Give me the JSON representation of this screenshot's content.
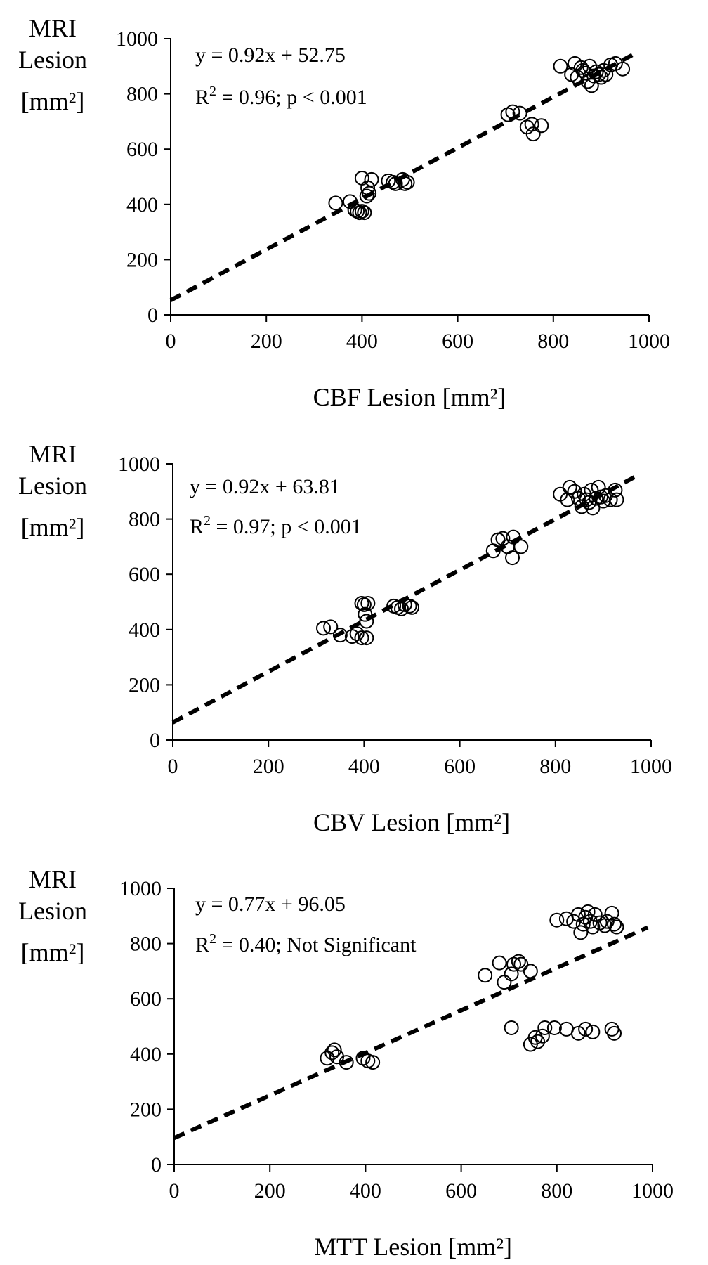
{
  "chart_data": [
    {
      "type": "scatter",
      "ylabel": [
        "MRI",
        "Lesion",
        "[mm²]"
      ],
      "xlabel": "CBF Lesion [mm²]",
      "equation": "y = 0.92x + 52.75",
      "r2_prefix": "R",
      "r2_sup": "2",
      "r2_rest": " = 0.96; p < 0.001",
      "xlim": [
        0,
        1000
      ],
      "ylim": [
        0,
        1000
      ],
      "xticks": [
        "0",
        "200",
        "400",
        "600",
        "800",
        "1000"
      ],
      "yticks": [
        "0",
        "200",
        "400",
        "600",
        "800",
        "1000"
      ],
      "fit": {
        "slope": 0.92,
        "intercept": 52.75,
        "x_range": [
          0,
          970
        ],
        "style": "dashed"
      },
      "points": [
        [
          345,
          405
        ],
        [
          375,
          410
        ],
        [
          385,
          380
        ],
        [
          390,
          375
        ],
        [
          395,
          370
        ],
        [
          400,
          375
        ],
        [
          405,
          370
        ],
        [
          400,
          495
        ],
        [
          410,
          430
        ],
        [
          412,
          460
        ],
        [
          415,
          440
        ],
        [
          420,
          490
        ],
        [
          455,
          485
        ],
        [
          465,
          480
        ],
        [
          470,
          475
        ],
        [
          485,
          490
        ],
        [
          490,
          475
        ],
        [
          495,
          480
        ],
        [
          705,
          725
        ],
        [
          715,
          735
        ],
        [
          730,
          730
        ],
        [
          745,
          680
        ],
        [
          755,
          690
        ],
        [
          758,
          655
        ],
        [
          775,
          685
        ],
        [
          815,
          900
        ],
        [
          838,
          870
        ],
        [
          845,
          910
        ],
        [
          850,
          860
        ],
        [
          858,
          895
        ],
        [
          862,
          885
        ],
        [
          868,
          875
        ],
        [
          872,
          845
        ],
        [
          876,
          900
        ],
        [
          880,
          830
        ],
        [
          885,
          865
        ],
        [
          890,
          880
        ],
        [
          895,
          870
        ],
        [
          900,
          860
        ],
        [
          905,
          885
        ],
        [
          910,
          870
        ],
        [
          920,
          905
        ],
        [
          930,
          910
        ],
        [
          945,
          890
        ]
      ]
    },
    {
      "type": "scatter",
      "ylabel": [
        "MRI",
        "Lesion",
        "[mm²]"
      ],
      "xlabel": "CBV Lesion [mm²]",
      "equation": "y = 0.92x + 63.81",
      "r2_prefix": "R",
      "r2_sup": "2",
      "r2_rest": " = 0.97; p < 0.001",
      "xlim": [
        0,
        1000
      ],
      "ylim": [
        0,
        1000
      ],
      "xticks": [
        "0",
        "200",
        "400",
        "600",
        "800",
        "1000"
      ],
      "yticks": [
        "0",
        "200",
        "400",
        "600",
        "800",
        "1000"
      ],
      "fit": {
        "slope": 0.92,
        "intercept": 63.81,
        "x_range": [
          0,
          970
        ],
        "style": "dashed"
      },
      "points": [
        [
          315,
          405
        ],
        [
          330,
          410
        ],
        [
          350,
          380
        ],
        [
          375,
          375
        ],
        [
          385,
          385
        ],
        [
          395,
          370
        ],
        [
          405,
          370
        ],
        [
          395,
          495
        ],
        [
          400,
          490
        ],
        [
          402,
          455
        ],
        [
          405,
          430
        ],
        [
          408,
          495
        ],
        [
          462,
          485
        ],
        [
          470,
          480
        ],
        [
          478,
          475
        ],
        [
          485,
          490
        ],
        [
          495,
          485
        ],
        [
          500,
          480
        ],
        [
          670,
          685
        ],
        [
          680,
          725
        ],
        [
          690,
          730
        ],
        [
          700,
          700
        ],
        [
          710,
          660
        ],
        [
          712,
          735
        ],
        [
          728,
          700
        ],
        [
          810,
          890
        ],
        [
          825,
          870
        ],
        [
          830,
          915
        ],
        [
          840,
          900
        ],
        [
          848,
          875
        ],
        [
          855,
          845
        ],
        [
          860,
          890
        ],
        [
          865,
          870
        ],
        [
          870,
          860
        ],
        [
          875,
          905
        ],
        [
          878,
          840
        ],
        [
          885,
          875
        ],
        [
          890,
          915
        ],
        [
          895,
          880
        ],
        [
          900,
          865
        ],
        [
          905,
          885
        ],
        [
          915,
          870
        ],
        [
          925,
          905
        ],
        [
          928,
          870
        ]
      ]
    },
    {
      "type": "scatter",
      "ylabel": [
        "MRI",
        "Lesion",
        "[mm²]"
      ],
      "xlabel": "MTT Lesion [mm²]",
      "equation": "y = 0.77x + 96.05",
      "r2_prefix": "R",
      "r2_sup": "2",
      "r2_rest": " = 0.40; Not Significant",
      "xlim": [
        0,
        1000
      ],
      "ylim": [
        0,
        1000
      ],
      "xticks": [
        "0",
        "200",
        "400",
        "600",
        "800",
        "1000"
      ],
      "yticks": [
        "0",
        "200",
        "400",
        "600",
        "800",
        "1000"
      ],
      "fit": {
        "slope": 0.77,
        "intercept": 96.05,
        "x_range": [
          0,
          990
        ],
        "style": "dashed"
      },
      "points": [
        [
          320,
          385
        ],
        [
          330,
          405
        ],
        [
          335,
          415
        ],
        [
          340,
          390
        ],
        [
          360,
          370
        ],
        [
          395,
          385
        ],
        [
          405,
          375
        ],
        [
          415,
          370
        ],
        [
          650,
          685
        ],
        [
          680,
          730
        ],
        [
          690,
          660
        ],
        [
          705,
          690
        ],
        [
          710,
          725
        ],
        [
          720,
          735
        ],
        [
          725,
          725
        ],
        [
          745,
          700
        ],
        [
          705,
          495
        ],
        [
          745,
          435
        ],
        [
          755,
          460
        ],
        [
          760,
          445
        ],
        [
          770,
          465
        ],
        [
          775,
          495
        ],
        [
          795,
          495
        ],
        [
          820,
          490
        ],
        [
          845,
          475
        ],
        [
          860,
          490
        ],
        [
          875,
          480
        ],
        [
          915,
          490
        ],
        [
          920,
          475
        ],
        [
          800,
          885
        ],
        [
          820,
          890
        ],
        [
          835,
          880
        ],
        [
          845,
          905
        ],
        [
          850,
          840
        ],
        [
          855,
          870
        ],
        [
          860,
          895
        ],
        [
          865,
          915
        ],
        [
          870,
          880
        ],
        [
          875,
          860
        ],
        [
          880,
          905
        ],
        [
          890,
          875
        ],
        [
          900,
          865
        ],
        [
          905,
          880
        ],
        [
          915,
          910
        ],
        [
          920,
          870
        ],
        [
          925,
          860
        ]
      ]
    }
  ]
}
